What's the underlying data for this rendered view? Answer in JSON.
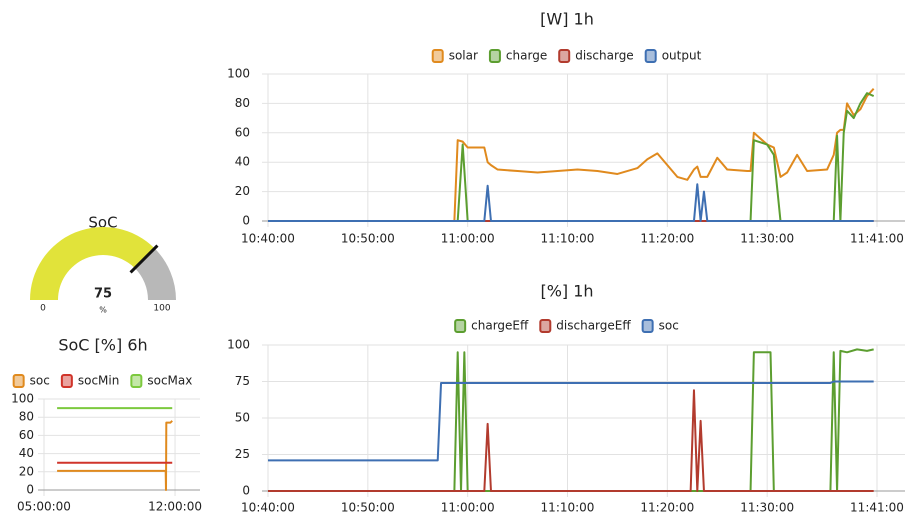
{
  "chart_data": [
    {
      "type": "gauge",
      "title": "SoC",
      "value": 75,
      "min": 0,
      "max": 100,
      "unit": "%",
      "color": "#e1e33a",
      "track_color": "#b8b8b8"
    },
    {
      "type": "line",
      "title": "[W] 1h",
      "x": [
        "10:40:00",
        "10:58:40",
        "10:59:00",
        "10:59:30",
        "11:00:00",
        "11:01:00",
        "11:01:40",
        "11:02:00",
        "11:02:20",
        "11:03:00",
        "11:05:00",
        "11:07:00",
        "11:09:00",
        "11:11:00",
        "11:13:00",
        "11:15:00",
        "11:17:00",
        "11:18:00",
        "11:19:00",
        "11:20:00",
        "11:21:00",
        "11:22:00",
        "11:22:40",
        "11:23:00",
        "11:23:20",
        "11:23:40",
        "11:24:00",
        "11:25:00",
        "11:26:00",
        "11:28:00",
        "11:28:20",
        "11:28:40",
        "11:30:00",
        "11:30:40",
        "11:31:20",
        "11:32:00",
        "11:33:00",
        "11:34:00",
        "11:36:00",
        "11:36:40",
        "11:37:00",
        "11:37:20",
        "11:37:40",
        "11:38:00",
        "11:38:40",
        "11:39:20",
        "11:40:00",
        "11:40:40"
      ],
      "series": [
        {
          "name": "solar",
          "color": "#e08a1e",
          "values": [
            0,
            0,
            55,
            54,
            50,
            50,
            50,
            40,
            38,
            35,
            34,
            33,
            34,
            35,
            34,
            32,
            36,
            42,
            46,
            38,
            30,
            28,
            35,
            37,
            30,
            30,
            30,
            43,
            35,
            34,
            34,
            60,
            52,
            50,
            30,
            33,
            45,
            34,
            35,
            45,
            60,
            62,
            62,
            80,
            72,
            76,
            85,
            90
          ]
        },
        {
          "name": "charge",
          "color": "#5c9e30",
          "values": [
            0,
            0,
            0,
            52,
            0,
            0,
            0,
            0,
            0,
            0,
            0,
            0,
            0,
            0,
            0,
            0,
            0,
            0,
            0,
            0,
            0,
            0,
            0,
            0,
            0,
            0,
            0,
            0,
            0,
            0,
            0,
            55,
            52,
            45,
            0,
            0,
            0,
            0,
            0,
            0,
            58,
            0,
            60,
            75,
            70,
            80,
            87,
            85
          ]
        },
        {
          "name": "discharge",
          "color": "#b23b2e",
          "values": [
            0,
            0,
            0,
            0,
            0,
            0,
            0,
            0,
            0,
            0,
            0,
            0,
            0,
            0,
            0,
            0,
            0,
            0,
            0,
            0,
            0,
            0,
            0,
            0,
            0,
            0,
            0,
            0,
            0,
            0,
            0,
            0,
            0,
            0,
            0,
            0,
            0,
            0,
            0,
            0,
            0,
            0,
            0,
            0,
            0,
            0,
            0,
            0
          ]
        },
        {
          "name": "output",
          "color": "#3e6fb2",
          "values": [
            0,
            0,
            0,
            0,
            0,
            0,
            0,
            24,
            0,
            0,
            0,
            0,
            0,
            0,
            0,
            0,
            0,
            0,
            0,
            0,
            0,
            0,
            0,
            25,
            0,
            20,
            0,
            0,
            0,
            0,
            0,
            0,
            0,
            0,
            0,
            0,
            0,
            0,
            0,
            0,
            0,
            0,
            0,
            0,
            0,
            0,
            0,
            0
          ]
        }
      ],
      "xlim": [
        "10:40:00",
        "11:41:00"
      ],
      "xticks": [
        "10:40:00",
        "10:50:00",
        "11:00:00",
        "11:10:00",
        "11:20:00",
        "11:30:00",
        "11:41:00"
      ],
      "ylim": [
        0,
        100
      ],
      "yticks": [
        0,
        20,
        40,
        60,
        80,
        100
      ],
      "grid": true
    },
    {
      "type": "line",
      "title": "[%] 1h",
      "x": [
        "10:40:00",
        "10:57:00",
        "10:57:20",
        "10:58:40",
        "10:59:00",
        "10:59:20",
        "10:59:40",
        "11:00:00",
        "11:01:40",
        "11:02:00",
        "11:02:20",
        "11:22:20",
        "11:22:40",
        "11:23:00",
        "11:23:20",
        "11:23:40",
        "11:28:20",
        "11:28:40",
        "11:30:00",
        "11:30:20",
        "11:30:40",
        "11:36:00",
        "11:36:20",
        "11:36:40",
        "11:37:00",
        "11:37:20",
        "11:38:00",
        "11:39:00",
        "11:40:00",
        "11:40:40"
      ],
      "series": [
        {
          "name": "chargeEff",
          "color": "#5c9e30",
          "values": [
            0,
            0,
            0,
            0,
            95,
            0,
            95,
            0,
            0,
            0,
            0,
            0,
            0,
            0,
            0,
            0,
            0,
            95,
            95,
            95,
            0,
            0,
            0,
            95,
            0,
            96,
            95,
            97,
            96,
            97
          ]
        },
        {
          "name": "dischargeEff",
          "color": "#b23b2e",
          "values": [
            0,
            0,
            0,
            0,
            0,
            0,
            0,
            0,
            0,
            46,
            0,
            0,
            69,
            0,
            48,
            0,
            0,
            0,
            0,
            0,
            0,
            0,
            0,
            0,
            0,
            0,
            0,
            0,
            0,
            0
          ]
        },
        {
          "name": "soc",
          "color": "#3e6fb2",
          "values": [
            21,
            21,
            74,
            74,
            74,
            74,
            74,
            74,
            74,
            74,
            74,
            74,
            74,
            74,
            74,
            74,
            74,
            74,
            74,
            74,
            74,
            74,
            74,
            75,
            75,
            75,
            75,
            75,
            75,
            75
          ]
        }
      ],
      "xlim": [
        "10:40:00",
        "11:41:00"
      ],
      "xticks": [
        "10:40:00",
        "10:50:00",
        "11:00:00",
        "11:10:00",
        "11:20:00",
        "11:30:00",
        "11:41:00"
      ],
      "ylim": [
        0,
        100
      ],
      "yticks": [
        0,
        25,
        50,
        75,
        100
      ],
      "grid": true
    },
    {
      "type": "line",
      "title": "SoC [%] 6h",
      "x": [
        "05:42:00",
        "11:30:00",
        "11:31:00",
        "11:32:00",
        "11:45:00",
        "11:51:00"
      ],
      "series": [
        {
          "name": "soc",
          "color": "#e08a1e",
          "values": [
            21,
            21,
            0,
            74,
            74,
            76
          ]
        },
        {
          "name": "socMin",
          "color": "#d0342a",
          "values": [
            30,
            30,
            30,
            30,
            30,
            30
          ]
        },
        {
          "name": "socMax",
          "color": "#7cc93e",
          "values": [
            90,
            90,
            90,
            90,
            90,
            90
          ]
        }
      ],
      "xlim": [
        "05:00:00",
        "13:20:00"
      ],
      "xticks": [
        "05:00:00",
        "12:00:00"
      ],
      "ylim": [
        0,
        100
      ],
      "yticks": [
        0,
        20,
        40,
        60,
        80,
        100
      ],
      "grid": true
    }
  ]
}
